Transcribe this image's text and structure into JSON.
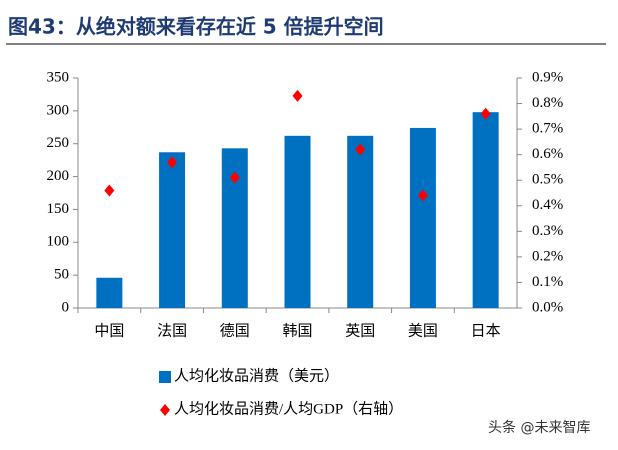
{
  "chart_data": {
    "type": "bar",
    "title": "图43：从绝对额来看存在近 5 倍提升空间",
    "categories": [
      "中国",
      "法国",
      "德国",
      "韩国",
      "英国",
      "美国",
      "日本"
    ],
    "series": [
      {
        "name": "人均化妆品消费（美元）",
        "type": "bar",
        "color": "#0070c0",
        "values": [
          46,
          237,
          243,
          262,
          262,
          274,
          298
        ]
      },
      {
        "name": "人均化妆品消费/人均GDP（右轴）",
        "type": "scatter",
        "axis": "y2",
        "color": "#ff0000",
        "values": [
          0.46,
          0.57,
          0.51,
          0.83,
          0.62,
          0.44,
          0.76
        ]
      }
    ],
    "ylim": [
      0,
      350
    ],
    "yticks": [
      0,
      50,
      100,
      150,
      200,
      250,
      300,
      350
    ],
    "y2lim": [
      0,
      0.9
    ],
    "y2ticks": [
      {
        "value": 0,
        "label": "0.0%"
      },
      {
        "value": 0.1,
        "label": "0.1%"
      },
      {
        "value": 0.2,
        "label": "0.2%"
      },
      {
        "value": 0.3,
        "label": "0.3%"
      },
      {
        "value": 0.4,
        "label": "0.4%"
      },
      {
        "value": 0.5,
        "label": "0.5%"
      },
      {
        "value": 0.6,
        "label": "0.6%"
      },
      {
        "value": 0.7,
        "label": "0.7%"
      },
      {
        "value": 0.8,
        "label": "0.8%"
      },
      {
        "value": 0.9,
        "label": "0.9%"
      }
    ],
    "grid": false
  },
  "watermark": "头条 @未来智库"
}
